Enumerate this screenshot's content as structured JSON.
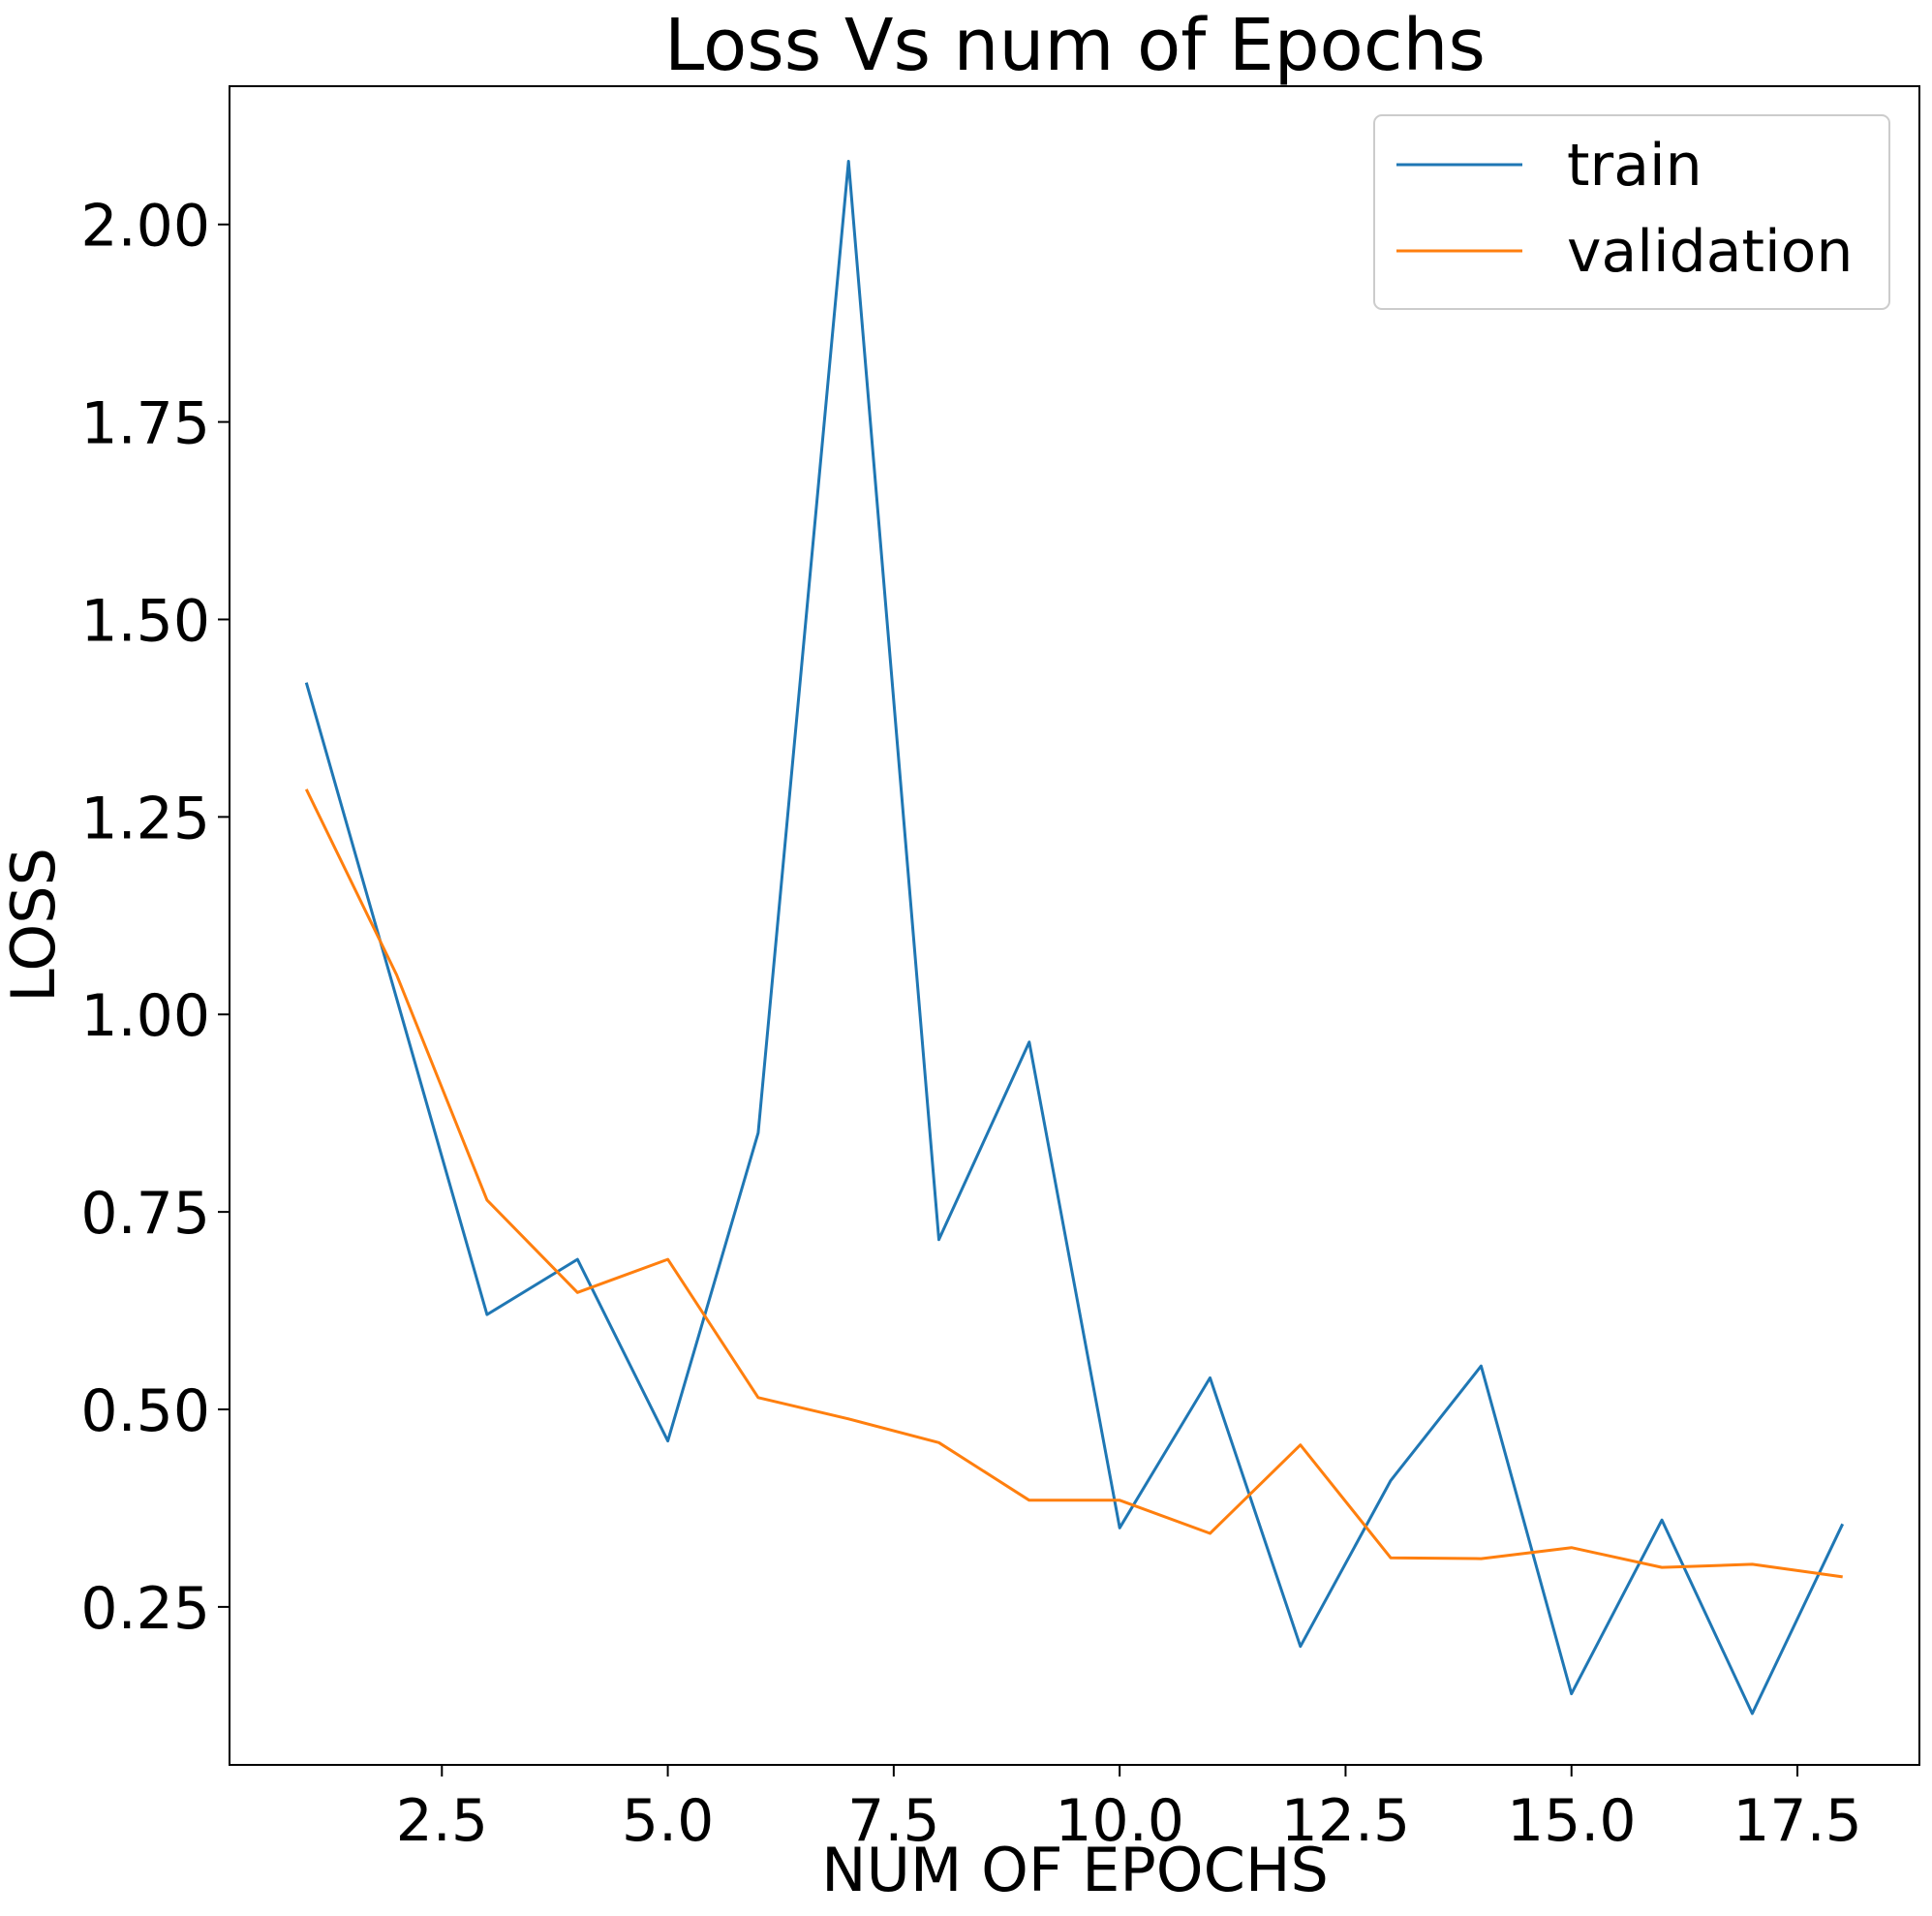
{
  "chart_data": {
    "type": "line",
    "title": "Loss Vs num of Epochs",
    "xlabel": "NUM OF EPOCHS",
    "ylabel": "LOSS",
    "xlim": [
      0.15,
      18.85
    ],
    "ylim": [
      0.05,
      2.175
    ],
    "xticks": [
      2.5,
      5.0,
      7.5,
      10.0,
      12.5,
      15.0,
      17.5
    ],
    "xtick_labels": [
      "2.5",
      "5.0",
      "7.5",
      "10.0",
      "12.5",
      "15.0",
      "17.5"
    ],
    "yticks": [
      0.25,
      0.5,
      0.75,
      1.0,
      1.25,
      1.5,
      1.75,
      2.0
    ],
    "ytick_labels": [
      "0.25",
      "0.50",
      "0.75",
      "1.00",
      "1.25",
      "1.50",
      "1.75",
      "2.00"
    ],
    "grid": false,
    "legend_position": "top-right",
    "x": [
      1,
      2,
      3,
      4,
      5,
      6,
      7,
      8,
      9,
      10,
      11,
      12,
      13,
      14,
      15,
      16,
      17,
      18
    ],
    "series": [
      {
        "name": "train",
        "color": "#1f77b4",
        "values": [
          1.42,
          1.02,
          0.62,
          0.69,
          0.46,
          0.85,
          2.08,
          0.715,
          0.965,
          0.35,
          0.54,
          0.2,
          0.41,
          0.555,
          0.14,
          0.36,
          0.115,
          0.355
        ]
      },
      {
        "name": "validation",
        "color": "#ff7f0e",
        "values": [
          1.285,
          1.05,
          0.765,
          0.648,
          0.69,
          0.515,
          0.488,
          0.458,
          0.385,
          0.385,
          0.343,
          0.455,
          0.312,
          0.311,
          0.325,
          0.3,
          0.304,
          0.288
        ]
      }
    ]
  }
}
